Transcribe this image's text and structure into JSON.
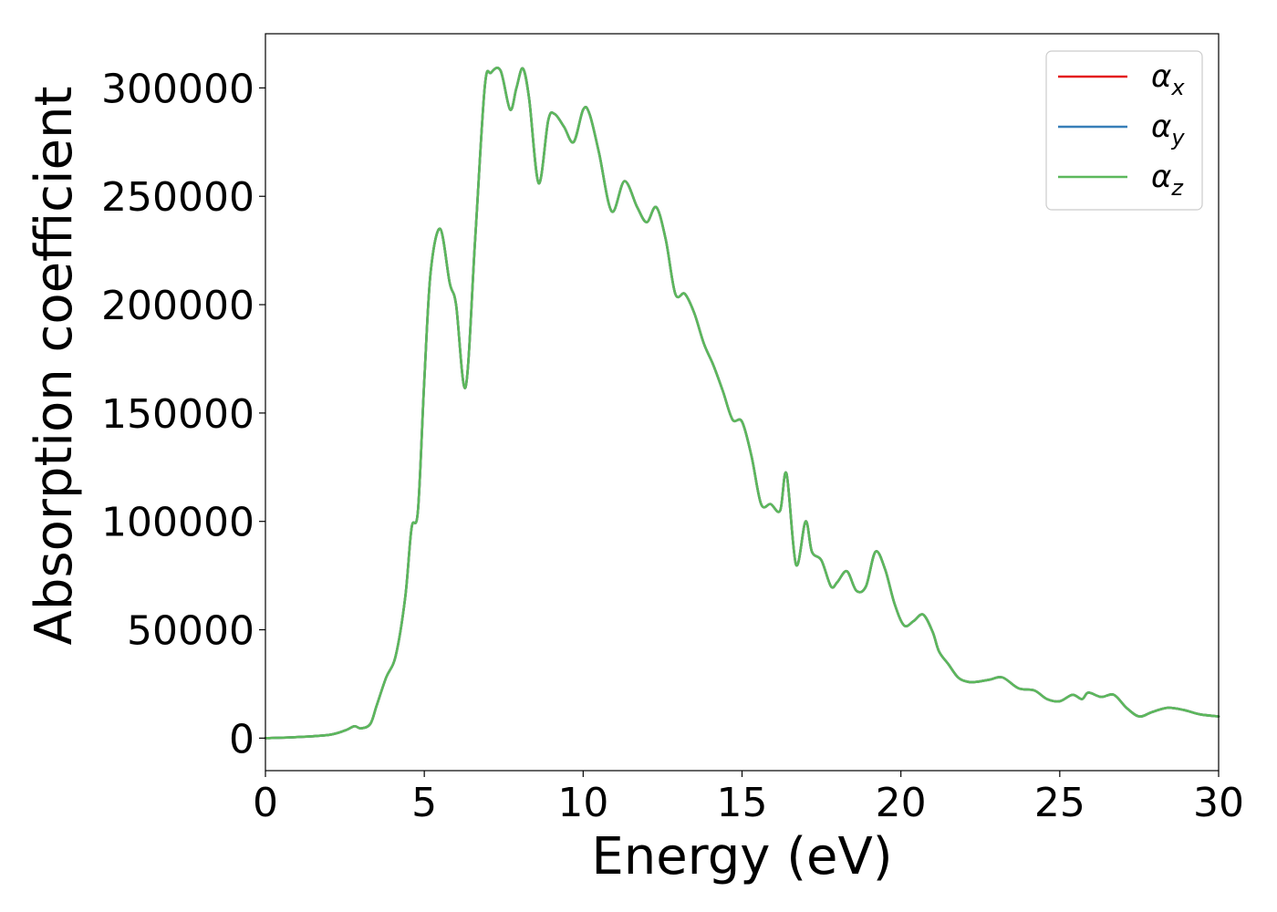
{
  "chart_data": {
    "type": "line",
    "title": "",
    "xlabel": "Energy (eV)",
    "ylabel": "Absorption coefficient",
    "xlim": [
      0,
      30
    ],
    "ylim": [
      -15000,
      325000
    ],
    "xticks": [
      0,
      5,
      10,
      15,
      20,
      25,
      30
    ],
    "xtick_labels": [
      "0",
      "5",
      "10",
      "15",
      "20",
      "25",
      "30"
    ],
    "yticks": [
      0,
      50000,
      100000,
      150000,
      200000,
      250000,
      300000
    ],
    "ytick_labels": [
      "0",
      "50000",
      "100000",
      "150000",
      "200000",
      "250000",
      "300000"
    ],
    "grid": false,
    "legend_position": "top-right",
    "series": [
      {
        "name": "α",
        "subscript": "x",
        "color": "#e41a1c",
        "x": [
          0,
          1,
          2,
          2.5,
          2.8,
          3.0,
          3.3,
          3.5,
          3.8,
          4.1,
          4.4,
          4.6,
          4.8,
          5.0,
          5.2,
          5.5,
          5.8,
          6.0,
          6.3,
          6.6,
          6.9,
          7.1,
          7.4,
          7.7,
          7.9,
          8.1,
          8.3,
          8.6,
          8.9,
          9.1,
          9.4,
          9.7,
          10.0,
          10.2,
          10.5,
          10.9,
          11.3,
          11.7,
          12.0,
          12.3,
          12.6,
          12.9,
          13.2,
          13.5,
          13.8,
          14.1,
          14.4,
          14.7,
          15.0,
          15.3,
          15.6,
          15.9,
          16.2,
          16.4,
          16.7,
          17.0,
          17.2,
          17.5,
          17.8,
          18.0,
          18.3,
          18.6,
          18.9,
          19.2,
          19.5,
          19.8,
          20.1,
          20.4,
          20.7,
          21.0,
          21.2,
          21.5,
          21.8,
          22.1,
          22.4,
          22.8,
          23.2,
          23.7,
          24.2,
          24.6,
          25.0,
          25.4,
          25.7,
          25.9,
          26.3,
          26.7,
          27.1,
          27.5,
          27.9,
          28.4,
          28.9,
          29.4,
          30.0
        ],
        "y": [
          0,
          500,
          1500,
          3500,
          5500,
          4500,
          6500,
          15000,
          28000,
          38000,
          65000,
          97000,
          105000,
          165000,
          215000,
          235000,
          210000,
          200000,
          162000,
          230000,
          300000,
          307000,
          308000,
          290000,
          300000,
          309000,
          295000,
          256000,
          285000,
          288000,
          282000,
          275000,
          290000,
          288000,
          270000,
          243000,
          257000,
          245000,
          238000,
          245000,
          230000,
          205000,
          205000,
          196000,
          182000,
          172000,
          160000,
          147000,
          146000,
          130000,
          108000,
          108000,
          105000,
          122000,
          80000,
          100000,
          86000,
          82000,
          70000,
          72000,
          77000,
          68000,
          70000,
          86000,
          78000,
          62000,
          52000,
          54000,
          57000,
          49000,
          40000,
          34000,
          28000,
          26000,
          26000,
          27000,
          28000,
          23000,
          22000,
          18000,
          17000,
          20000,
          18000,
          21000,
          19000,
          20000,
          14000,
          10000,
          12000,
          14000,
          13000,
          11000,
          10000
        ]
      },
      {
        "name": "α",
        "subscript": "y",
        "color": "#377eb8",
        "x": [
          0,
          1,
          2,
          2.5,
          2.8,
          3.0,
          3.3,
          3.5,
          3.8,
          4.1,
          4.4,
          4.6,
          4.8,
          5.0,
          5.2,
          5.5,
          5.8,
          6.0,
          6.3,
          6.6,
          6.9,
          7.1,
          7.4,
          7.7,
          7.9,
          8.1,
          8.3,
          8.6,
          8.9,
          9.1,
          9.4,
          9.7,
          10.0,
          10.2,
          10.5,
          10.9,
          11.3,
          11.7,
          12.0,
          12.3,
          12.6,
          12.9,
          13.2,
          13.5,
          13.8,
          14.1,
          14.4,
          14.7,
          15.0,
          15.3,
          15.6,
          15.9,
          16.2,
          16.4,
          16.7,
          17.0,
          17.2,
          17.5,
          17.8,
          18.0,
          18.3,
          18.6,
          18.9,
          19.2,
          19.5,
          19.8,
          20.1,
          20.4,
          20.7,
          21.0,
          21.2,
          21.5,
          21.8,
          22.1,
          22.4,
          22.8,
          23.2,
          23.7,
          24.2,
          24.6,
          25.0,
          25.4,
          25.7,
          25.9,
          26.3,
          26.7,
          27.1,
          27.5,
          27.9,
          28.4,
          28.9,
          29.4,
          30.0
        ],
        "y": [
          0,
          500,
          1500,
          3500,
          5500,
          4500,
          6500,
          15000,
          28000,
          38000,
          65000,
          97000,
          105000,
          165000,
          215000,
          235000,
          210000,
          200000,
          162000,
          230000,
          300000,
          307000,
          308000,
          290000,
          300000,
          309000,
          295000,
          256000,
          285000,
          288000,
          282000,
          275000,
          290000,
          288000,
          270000,
          243000,
          257000,
          245000,
          238000,
          245000,
          230000,
          205000,
          205000,
          196000,
          182000,
          172000,
          160000,
          147000,
          146000,
          130000,
          108000,
          108000,
          105000,
          122000,
          80000,
          100000,
          86000,
          82000,
          70000,
          72000,
          77000,
          68000,
          70000,
          86000,
          78000,
          62000,
          52000,
          54000,
          57000,
          49000,
          40000,
          34000,
          28000,
          26000,
          26000,
          27000,
          28000,
          23000,
          22000,
          18000,
          17000,
          20000,
          18000,
          21000,
          19000,
          20000,
          14000,
          10000,
          12000,
          14000,
          13000,
          11000,
          10000
        ]
      },
      {
        "name": "α",
        "subscript": "z",
        "color": "#5cb85c",
        "x": [
          0,
          1,
          2,
          2.5,
          2.8,
          3.0,
          3.3,
          3.5,
          3.8,
          4.1,
          4.4,
          4.6,
          4.8,
          5.0,
          5.2,
          5.5,
          5.8,
          6.0,
          6.3,
          6.6,
          6.9,
          7.1,
          7.4,
          7.7,
          7.9,
          8.1,
          8.3,
          8.6,
          8.9,
          9.1,
          9.4,
          9.7,
          10.0,
          10.2,
          10.5,
          10.9,
          11.3,
          11.7,
          12.0,
          12.3,
          12.6,
          12.9,
          13.2,
          13.5,
          13.8,
          14.1,
          14.4,
          14.7,
          15.0,
          15.3,
          15.6,
          15.9,
          16.2,
          16.4,
          16.7,
          17.0,
          17.2,
          17.5,
          17.8,
          18.0,
          18.3,
          18.6,
          18.9,
          19.2,
          19.5,
          19.8,
          20.1,
          20.4,
          20.7,
          21.0,
          21.2,
          21.5,
          21.8,
          22.1,
          22.4,
          22.8,
          23.2,
          23.7,
          24.2,
          24.6,
          25.0,
          25.4,
          25.7,
          25.9,
          26.3,
          26.7,
          27.1,
          27.5,
          27.9,
          28.4,
          28.9,
          29.4,
          30.0
        ],
        "y": [
          0,
          500,
          1500,
          3500,
          5500,
          4500,
          6500,
          15000,
          28000,
          38000,
          65000,
          97000,
          105000,
          165000,
          215000,
          235000,
          210000,
          200000,
          162000,
          230000,
          300000,
          307000,
          308000,
          290000,
          300000,
          309000,
          295000,
          256000,
          285000,
          288000,
          282000,
          275000,
          290000,
          288000,
          270000,
          243000,
          257000,
          245000,
          238000,
          245000,
          230000,
          205000,
          205000,
          196000,
          182000,
          172000,
          160000,
          147000,
          146000,
          130000,
          108000,
          108000,
          105000,
          122000,
          80000,
          100000,
          86000,
          82000,
          70000,
          72000,
          77000,
          68000,
          70000,
          86000,
          78000,
          62000,
          52000,
          54000,
          57000,
          49000,
          40000,
          34000,
          28000,
          26000,
          26000,
          27000,
          28000,
          23000,
          22000,
          18000,
          17000,
          20000,
          18000,
          21000,
          19000,
          20000,
          14000,
          10000,
          12000,
          14000,
          13000,
          11000,
          10000
        ]
      }
    ]
  }
}
